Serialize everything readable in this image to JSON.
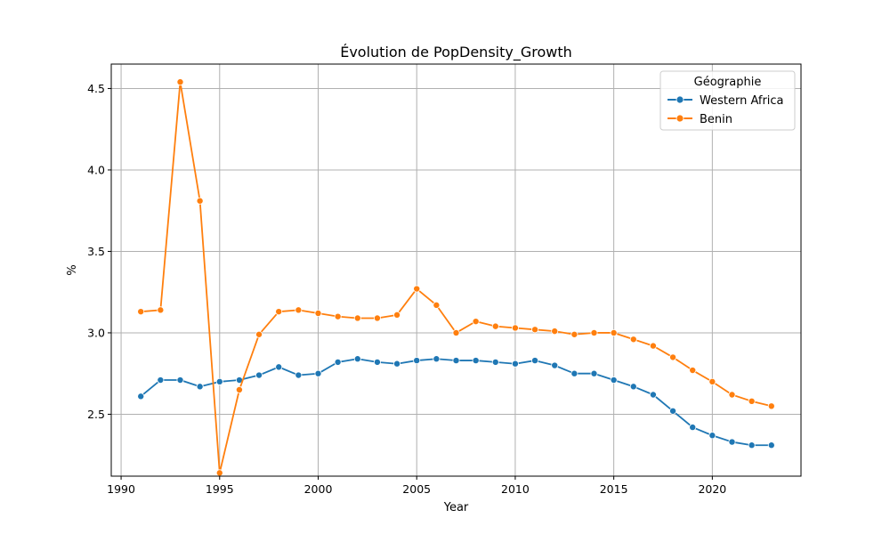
{
  "chart_data": {
    "type": "line",
    "title": "Évolution de PopDensity_Growth",
    "xlabel": "Year",
    "ylabel": "%",
    "xlim": [
      1989.5,
      2024.5
    ],
    "ylim": [
      2.12,
      4.65
    ],
    "xticks": [
      1990,
      1995,
      2000,
      2005,
      2010,
      2015,
      2020
    ],
    "yticks": [
      2.5,
      3.0,
      3.5,
      4.0,
      4.5
    ],
    "grid": true,
    "legend": {
      "title": "Géographie",
      "placement": "top-right"
    },
    "x": [
      1991,
      1992,
      1993,
      1994,
      1995,
      1996,
      1997,
      1998,
      1999,
      2000,
      2001,
      2002,
      2003,
      2004,
      2005,
      2006,
      2007,
      2008,
      2009,
      2010,
      2011,
      2012,
      2013,
      2014,
      2015,
      2016,
      2017,
      2018,
      2019,
      2020,
      2021,
      2022,
      2023
    ],
    "series": [
      {
        "name": "Western Africa",
        "color": "#1f77b4",
        "values": [
          2.61,
          2.71,
          2.71,
          2.67,
          2.7,
          2.71,
          2.74,
          2.79,
          2.74,
          2.75,
          2.82,
          2.84,
          2.82,
          2.81,
          2.83,
          2.84,
          2.83,
          2.83,
          2.82,
          2.81,
          2.83,
          2.8,
          2.75,
          2.75,
          2.71,
          2.67,
          2.62,
          2.52,
          2.42,
          2.37,
          2.33,
          2.31,
          2.31
        ]
      },
      {
        "name": "Benin",
        "color": "#ff7f0e",
        "values": [
          3.13,
          3.14,
          4.54,
          3.81,
          2.14,
          2.65,
          2.99,
          3.13,
          3.14,
          3.12,
          3.1,
          3.09,
          3.09,
          3.11,
          3.27,
          3.17,
          3.0,
          3.07,
          3.04,
          3.03,
          3.02,
          3.01,
          2.99,
          3.0,
          3.0,
          2.96,
          2.92,
          2.85,
          2.77,
          2.7,
          2.62,
          2.58,
          2.55
        ]
      }
    ]
  }
}
